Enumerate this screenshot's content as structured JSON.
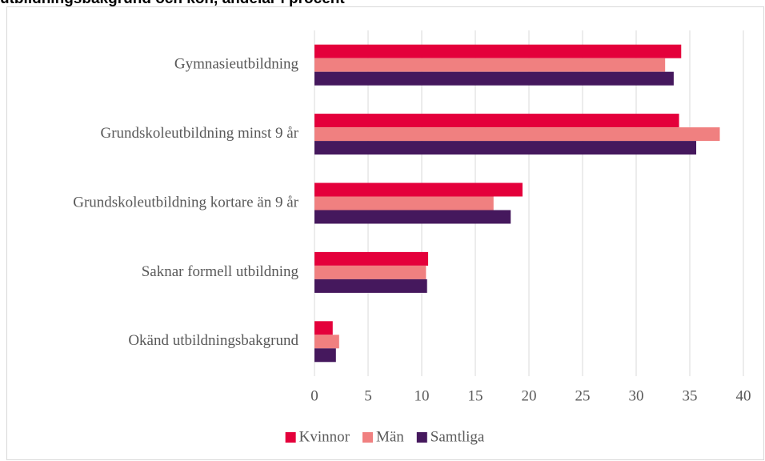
{
  "chart_data": {
    "type": "bar",
    "orientation": "horizontal",
    "title": "utbildningsbakgrund och kön, andelar i procent",
    "categories": [
      "Gymnasieutbildning",
      "Grundskoleutbildning minst 9 år",
      "Grundskoleutbildning kortare än 9 år",
      "Saknar formell utbildning",
      "Okänd utbildningsbakgrund"
    ],
    "series": [
      {
        "name": "Kvinnor",
        "color": "#e4003b",
        "values": [
          34.2,
          34.0,
          19.4,
          10.6,
          1.7
        ]
      },
      {
        "name": "Män",
        "color": "#f08080",
        "values": [
          32.7,
          37.8,
          16.7,
          10.4,
          2.3
        ]
      },
      {
        "name": "Samtliga",
        "color": "#45185d",
        "values": [
          33.5,
          35.6,
          18.3,
          10.5,
          2.0
        ]
      }
    ],
    "xlim": [
      0,
      40
    ],
    "xticks": [
      0,
      5,
      10,
      15,
      20,
      25,
      30,
      35,
      40
    ],
    "grid": true,
    "legend": "bottom"
  }
}
